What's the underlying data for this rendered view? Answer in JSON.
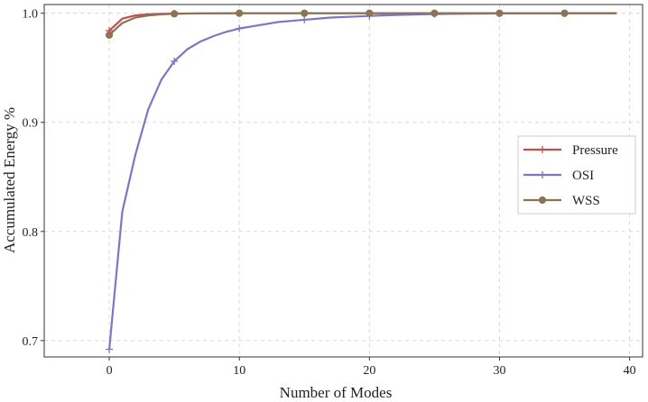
{
  "chart_data": {
    "type": "line",
    "xlabel": "Number of Modes",
    "ylabel": "Accumulated Energy %",
    "xlim": [
      -5,
      41
    ],
    "ylim": [
      0.685,
      1.008
    ],
    "xticks": [
      0,
      10,
      20,
      30,
      40
    ],
    "yticks": [
      0.7,
      0.8,
      0.9,
      1.0
    ],
    "xtick_labels": [
      "0",
      "10",
      "20",
      "30",
      "40"
    ],
    "ytick_labels": [
      "0.7",
      "0.8",
      "0.9",
      "1.0"
    ],
    "grid": true,
    "legend_position": "right",
    "series": [
      {
        "name": "Pressure",
        "color": "#c0504d",
        "marker": "+",
        "marker_every": 5,
        "x": [
          0,
          1,
          2,
          3,
          4,
          5,
          6,
          7,
          8,
          9,
          10,
          11,
          12,
          13,
          14,
          15,
          16,
          17,
          18,
          19,
          20,
          21,
          22,
          23,
          24,
          25,
          26,
          27,
          28,
          29,
          30,
          31,
          32,
          33,
          34,
          35,
          36,
          37,
          38,
          39
        ],
        "y": [
          0.984,
          0.995,
          0.998,
          0.999,
          0.9995,
          0.9997,
          0.9998,
          0.9999,
          0.9999,
          1.0,
          1.0,
          1.0,
          1.0,
          1.0,
          1.0,
          1.0,
          1.0,
          1.0,
          1.0,
          1.0,
          1.0,
          1.0,
          1.0,
          1.0,
          1.0,
          1.0,
          1.0,
          1.0,
          1.0,
          1.0,
          1.0,
          1.0,
          1.0,
          1.0,
          1.0,
          1.0,
          1.0,
          1.0,
          1.0,
          1.0
        ]
      },
      {
        "name": "OSI",
        "color": "#7c77c4",
        "marker": "+",
        "marker_every": 5,
        "x": [
          0,
          1,
          2,
          3,
          4,
          5,
          6,
          7,
          8,
          9,
          10,
          11,
          12,
          13,
          14,
          15,
          16,
          17,
          18,
          19,
          20,
          21,
          22,
          23,
          24,
          25,
          26,
          27,
          28,
          29,
          30,
          31,
          32,
          33,
          34,
          35,
          36,
          37,
          38,
          39
        ],
        "y": [
          0.692,
          0.818,
          0.87,
          0.912,
          0.939,
          0.956,
          0.967,
          0.974,
          0.979,
          0.983,
          0.986,
          0.988,
          0.99,
          0.992,
          0.993,
          0.994,
          0.995,
          0.996,
          0.9965,
          0.997,
          0.9975,
          0.998,
          0.9984,
          0.9987,
          0.999,
          0.9992,
          0.9994,
          0.9995,
          0.9996,
          0.9997,
          0.9998,
          0.9998,
          0.9999,
          0.9999,
          0.9999,
          1.0,
          1.0,
          1.0,
          1.0,
          1.0
        ]
      },
      {
        "name": "WSS",
        "color": "#8b7355",
        "marker": "o",
        "marker_every": 5,
        "x": [
          0,
          1,
          2,
          3,
          4,
          5,
          6,
          7,
          8,
          9,
          10,
          11,
          12,
          13,
          14,
          15,
          16,
          17,
          18,
          19,
          20,
          21,
          22,
          23,
          24,
          25,
          26,
          27,
          28,
          29,
          30,
          31,
          32,
          33,
          34,
          35,
          36,
          37,
          38,
          39
        ],
        "y": [
          0.98,
          0.991,
          0.996,
          0.998,
          0.999,
          0.9995,
          0.9997,
          0.9998,
          0.9999,
          0.9999,
          1.0,
          1.0,
          1.0,
          1.0,
          1.0,
          1.0,
          1.0,
          1.0,
          1.0,
          1.0,
          1.0,
          1.0,
          1.0,
          1.0,
          1.0,
          1.0,
          1.0,
          1.0,
          1.0,
          1.0,
          1.0,
          1.0,
          1.0,
          1.0,
          1.0,
          1.0,
          1.0,
          1.0,
          1.0,
          1.0
        ]
      }
    ]
  }
}
